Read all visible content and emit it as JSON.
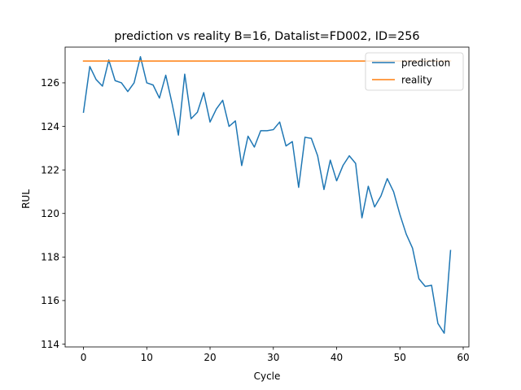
{
  "chart_data": {
    "type": "line",
    "title": "prediction vs reality B=16, Datalist=FD002, ID=256",
    "xlabel": "Cycle",
    "ylabel": "RUL",
    "xlim": [
      -2.9,
      60.9
    ],
    "ylim": [
      113.87,
      127.64
    ],
    "xticks": [
      0,
      10,
      20,
      30,
      40,
      50,
      60
    ],
    "yticks": [
      114,
      116,
      118,
      120,
      122,
      124,
      126
    ],
    "grid": false,
    "legend_position": "top-right",
    "series": [
      {
        "name": "prediction",
        "color": "#1f77b4",
        "x": [
          0,
          1,
          2,
          3,
          4,
          5,
          6,
          7,
          8,
          9,
          10,
          11,
          12,
          13,
          14,
          15,
          16,
          17,
          18,
          19,
          20,
          21,
          22,
          23,
          24,
          25,
          26,
          27,
          28,
          29,
          30,
          31,
          32,
          33,
          34,
          35,
          36,
          37,
          38,
          39,
          40,
          41,
          42,
          43,
          44,
          45,
          46,
          47,
          48,
          49,
          50,
          51,
          52,
          53,
          54,
          55,
          56,
          57,
          58
        ],
        "y": [
          124.65,
          126.75,
          126.15,
          125.85,
          127.05,
          126.1,
          126.0,
          125.6,
          126.0,
          127.2,
          126.0,
          125.9,
          125.3,
          126.35,
          125.05,
          123.6,
          126.4,
          124.35,
          124.65,
          125.55,
          124.2,
          124.8,
          125.2,
          124.0,
          124.25,
          122.2,
          123.55,
          123.05,
          123.8,
          123.8,
          123.85,
          124.2,
          123.1,
          123.3,
          121.2,
          123.5,
          123.45,
          122.65,
          121.1,
          122.45,
          121.5,
          122.2,
          122.65,
          122.3,
          119.8,
          121.25,
          120.3,
          120.8,
          121.6,
          121.0,
          119.95,
          119.05,
          118.4,
          117.0,
          116.65,
          116.7,
          114.95,
          114.5,
          118.3
        ]
      },
      {
        "name": "reality",
        "color": "#ff7f0e",
        "x": [
          0,
          58
        ],
        "y": [
          127.0,
          127.0
        ]
      }
    ]
  }
}
